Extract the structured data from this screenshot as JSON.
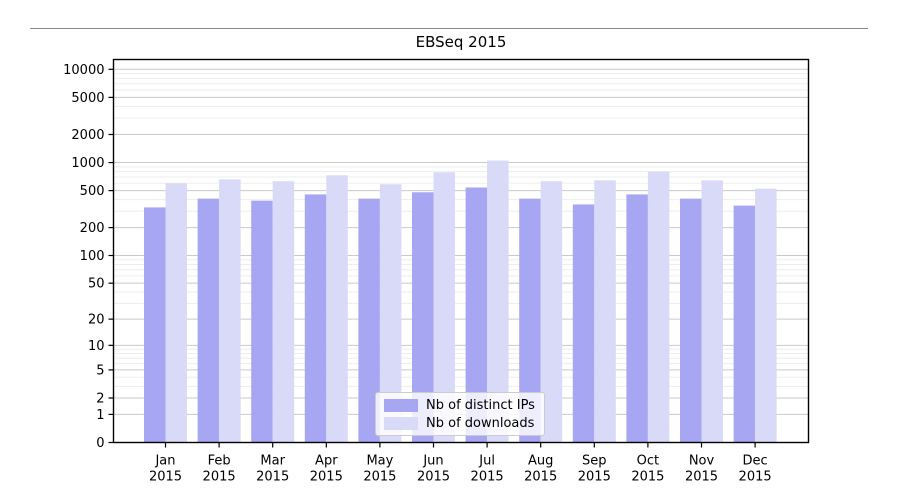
{
  "chart_data": {
    "type": "bar",
    "title": "EBSeq 2015",
    "categories": [
      "Jan",
      "Feb",
      "Mar",
      "Apr",
      "May",
      "Jun",
      "Jul",
      "Aug",
      "Sep",
      "Oct",
      "Nov",
      "Dec"
    ],
    "category_second_line": "2015",
    "series": [
      {
        "name": "Nb of distinct IPs",
        "color": "#a6a6f2",
        "values": [
          330,
          410,
          390,
          455,
          410,
          480,
          540,
          410,
          355,
          455,
          410,
          345
        ]
      },
      {
        "name": "Nb of downloads",
        "color": "#d9d9f8",
        "values": [
          600,
          660,
          630,
          730,
          585,
          785,
          1050,
          630,
          645,
          800,
          645,
          525
        ]
      }
    ],
    "y_axis": {
      "scale": "log1p",
      "ticks": [
        0,
        1,
        2,
        5,
        10,
        20,
        50,
        100,
        200,
        500,
        1000,
        2000,
        5000,
        10000
      ],
      "minor_tick_mantissas": [
        3,
        4,
        6,
        7,
        8,
        9
      ],
      "ylim": [
        0,
        13000
      ]
    },
    "grid": true,
    "legend_position": "lower center inside plot"
  },
  "colors": {
    "background": "#ffffff",
    "axis_spine": "#000000",
    "grid_major": "#c9c9c9",
    "grid_minor": "#ededed",
    "tick_label": "#000000",
    "top_rule": "#888888"
  }
}
